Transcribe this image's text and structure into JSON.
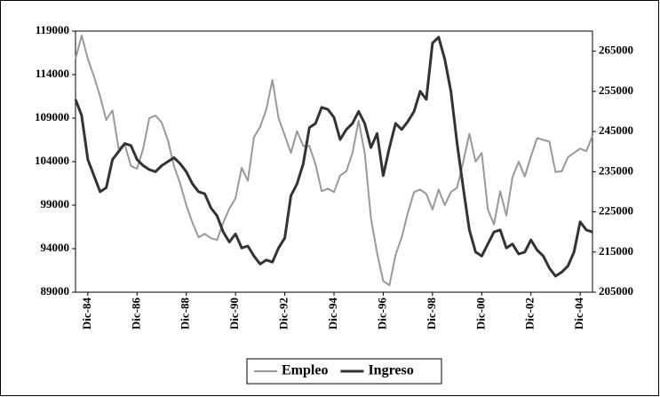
{
  "chart_data": {
    "type": "line",
    "categories": [
      null,
      null,
      "Dic-84",
      null,
      null,
      null,
      null,
      null,
      null,
      null,
      "Dic-86",
      null,
      null,
      null,
      null,
      null,
      null,
      null,
      "Dic-88",
      null,
      null,
      null,
      null,
      null,
      null,
      null,
      "Dic-90",
      null,
      null,
      null,
      null,
      null,
      null,
      null,
      "Dic-92",
      null,
      null,
      null,
      null,
      null,
      null,
      null,
      "Dic-94",
      null,
      null,
      null,
      null,
      null,
      null,
      null,
      "Dic-96",
      null,
      null,
      null,
      null,
      null,
      null,
      null,
      "Dic-98",
      null,
      null,
      null,
      null,
      null,
      null,
      null,
      "Dic-00",
      null,
      null,
      null,
      null,
      null,
      null,
      null,
      "Dic-02",
      null,
      null,
      null,
      null,
      null,
      null,
      null,
      "Dic-04",
      null,
      null
    ],
    "series": [
      {
        "name": "Empleo",
        "color": "#999999",
        "values": [
          115800,
          118500,
          115800,
          113800,
          111500,
          108800,
          109900,
          105500,
          106000,
          103500,
          103200,
          105500,
          109000,
          109300,
          108500,
          106500,
          103500,
          101500,
          99000,
          97000,
          95300,
          95700,
          95200,
          95000,
          97000,
          98600,
          99800,
          103300,
          101800,
          106800,
          108000,
          110000,
          113400,
          109000,
          107000,
          105000,
          107500,
          105800,
          105800,
          103700,
          100600,
          100900,
          100500,
          102400,
          102900,
          105000,
          108700,
          105000,
          97500,
          93500,
          90300,
          89800,
          93300,
          95300,
          98100,
          100500,
          100800,
          100300,
          98500,
          100800,
          99000,
          100500,
          101000,
          104000,
          107200,
          104000,
          105000,
          98500,
          96800,
          100600,
          97800,
          102200,
          104000,
          102300,
          104600,
          106700,
          106500,
          106300,
          102800,
          102900,
          104500,
          105000,
          105500,
          105200,
          107000
        ]
      },
      {
        "name": "Ingreso",
        "color": "#333333",
        "axis": "y2",
        "values": [
          253000,
          249000,
          238000,
          234000,
          230000,
          231000,
          238000,
          240000,
          242000,
          241500,
          238000,
          236500,
          235500,
          235000,
          236500,
          237500,
          238500,
          237000,
          235000,
          232000,
          230000,
          229500,
          226000,
          224000,
          220000,
          217500,
          219500,
          216000,
          216500,
          214000,
          212000,
          213000,
          212500,
          216000,
          218500,
          229000,
          232000,
          237000,
          246000,
          247000,
          251000,
          250500,
          248500,
          243000,
          245500,
          247000,
          250000,
          247000,
          241000,
          244500,
          234000,
          241000,
          247000,
          245500,
          247500,
          250000,
          255000,
          253000,
          267000,
          268500,
          263000,
          255000,
          242000,
          231000,
          220500,
          215000,
          214000,
          217000,
          220000,
          220500,
          216000,
          217000,
          214500,
          215000,
          218000,
          215500,
          214000,
          211000,
          209000,
          210000,
          211500,
          215000,
          222500,
          220500,
          220000
        ]
      }
    ],
    "ylim": [
      89000,
      119000
    ],
    "yticks": [
      89000,
      94000,
      99000,
      104000,
      109000,
      114000,
      119000
    ],
    "y2lim": [
      205000,
      270000
    ],
    "y2ticks": [
      205000,
      215000,
      225000,
      235000,
      245000,
      255000,
      265000
    ],
    "legend": "bottom"
  }
}
